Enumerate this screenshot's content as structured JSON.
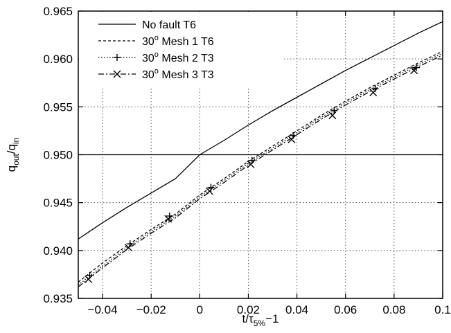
{
  "chart_data": {
    "type": "line",
    "xlabel": "t/τ5%−1",
    "ylabel": "qout/qin",
    "xlim": [
      -0.05,
      0.1
    ],
    "ylim": [
      0.935,
      0.965
    ],
    "x_ticks": [
      -0.04,
      -0.02,
      0,
      0.02,
      0.04,
      0.06,
      0.08,
      0.1
    ],
    "x_tick_labels": [
      "−0.04",
      "−0.02",
      "0",
      "0.02",
      "0.04",
      "0.06",
      "0.08",
      "0.1"
    ],
    "y_ticks": [
      0.935,
      0.94,
      0.945,
      0.95,
      0.955,
      0.96,
      0.965
    ],
    "y_tick_labels": [
      "0.935",
      "0.940",
      "0.945",
      "0.950",
      "0.955",
      "0.960",
      "0.965"
    ],
    "grid": true,
    "legend_position": "top-left",
    "reference_line": {
      "y": 0.95
    },
    "series": [
      {
        "name": "No fault T6",
        "style": "solid",
        "marker": "none",
        "x": [
          -0.05,
          -0.04,
          -0.03,
          -0.02,
          -0.01,
          0,
          0.01,
          0.02,
          0.03,
          0.04,
          0.05,
          0.06,
          0.07,
          0.08,
          0.09,
          0.1
        ],
        "y": [
          0.9412,
          0.9429,
          0.9445,
          0.946,
          0.9475,
          0.95,
          0.9515,
          0.9531,
          0.9546,
          0.956,
          0.9574,
          0.9588,
          0.9601,
          0.9614,
          0.9627,
          0.9639
        ]
      },
      {
        "name": "30° Mesh 1 T6",
        "style": "dashed",
        "marker": "none",
        "x": [
          -0.05,
          -0.04,
          -0.03,
          -0.02,
          -0.01,
          0,
          0.01,
          0.02,
          0.03,
          0.04,
          0.05,
          0.06,
          0.07,
          0.08,
          0.09,
          0.1
        ],
        "y": [
          0.9367,
          0.9387,
          0.9405,
          0.9422,
          0.9438,
          0.9458,
          0.9475,
          0.9493,
          0.9509,
          0.9525,
          0.9541,
          0.9556,
          0.957,
          0.9583,
          0.9596,
          0.9608
        ]
      },
      {
        "name": "30° Mesh 2 T3",
        "style": "dotted",
        "marker": "plus",
        "x": [
          -0.05,
          -0.04,
          -0.03,
          -0.02,
          -0.01,
          0,
          0.01,
          0.02,
          0.03,
          0.04,
          0.05,
          0.06,
          0.07,
          0.08,
          0.09,
          0.1
        ],
        "y": [
          0.9364,
          0.9384,
          0.9403,
          0.942,
          0.9436,
          0.9456,
          0.9473,
          0.9491,
          0.9507,
          0.9523,
          0.9539,
          0.9554,
          0.9568,
          0.9581,
          0.9594,
          0.9606
        ],
        "marker_x": [
          -0.0453,
          -0.0287,
          -0.0124,
          0.0046,
          0.0215,
          0.0384,
          0.0553,
          0.0722,
          0.0892
        ],
        "marker_y": [
          0.9374,
          0.9407,
          0.9436,
          0.9466,
          0.9494,
          0.952,
          0.9546,
          0.9569,
          0.9591
        ]
      },
      {
        "name": "30° Mesh 3 T3",
        "style": "dashdot",
        "marker": "x",
        "x": [
          -0.05,
          -0.04,
          -0.03,
          -0.02,
          -0.01,
          0,
          0.01,
          0.02,
          0.03,
          0.04,
          0.05,
          0.06,
          0.07,
          0.08,
          0.09,
          0.1
        ],
        "y": [
          0.9362,
          0.9382,
          0.9401,
          0.9418,
          0.9434,
          0.9454,
          0.9471,
          0.9489,
          0.9505,
          0.9521,
          0.9537,
          0.9552,
          0.9566,
          0.9579,
          0.9592,
          0.9604
        ],
        "marker_x": [
          -0.0458,
          -0.0293,
          -0.013,
          0.004,
          0.021,
          0.0378,
          0.0546,
          0.0714,
          0.0882
        ],
        "marker_y": [
          0.937,
          0.9403,
          0.9433,
          0.9462,
          0.949,
          0.9516,
          0.9541,
          0.9565,
          0.9588
        ]
      }
    ]
  }
}
